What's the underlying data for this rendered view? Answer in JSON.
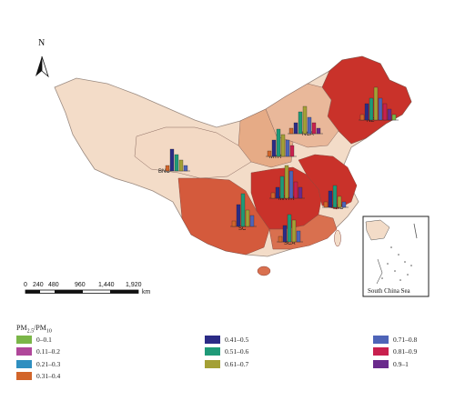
{
  "north_label": "N",
  "scale": {
    "ticks": [
      "0",
      "240",
      "480",
      "960",
      "1,440",
      "1,920"
    ],
    "unit": "km"
  },
  "inset_label": "South China Sea",
  "legend": {
    "title_main": "PM",
    "title_sub1": "2.5",
    "title_slash": "/PM",
    "title_sub2": "10",
    "items": [
      {
        "label": "0–0.1",
        "color": "#7ab648"
      },
      {
        "label": "0.11–0.2",
        "color": "#b0479a"
      },
      {
        "label": "0.21–0.3",
        "color": "#2f8fc0"
      },
      {
        "label": "0.31–0.4",
        "color": "#d2652a"
      },
      {
        "label": "0.41–0.5",
        "color": "#2b2b86"
      },
      {
        "label": "0.51–0.6",
        "color": "#1f9a78"
      },
      {
        "label": "0.61–0.7",
        "color": "#a4a035"
      },
      {
        "label": "0.71–0.8",
        "color": "#4e64b8"
      },
      {
        "label": "0.81–0.9",
        "color": "#c8204e"
      },
      {
        "label": "0.9–1",
        "color": "#6a2a8c"
      }
    ]
  },
  "regions": [
    {
      "label": "NE",
      "fill": "#c9322a",
      "bars": [
        1,
        3,
        4,
        6,
        4,
        3,
        2,
        1
      ]
    },
    {
      "label": "NCA",
      "fill": "#e9b89a",
      "bars": [
        1,
        2,
        4,
        5,
        3,
        2,
        1
      ]
    },
    {
      "label": "MYR",
      "fill": "#e6ab86",
      "bars": [
        1,
        3,
        5,
        4,
        3,
        2
      ]
    },
    {
      "label": "BNC",
      "fill": "#f3d9c4",
      "bars": [
        1,
        4,
        3,
        2,
        1
      ]
    },
    {
      "label": "MRYR",
      "fill": "#c9322a",
      "bars": [
        1,
        2,
        4,
        6,
        5,
        3,
        2
      ]
    },
    {
      "label": "SC",
      "fill": "#d45a3c",
      "bars": [
        1,
        4,
        6,
        3,
        2
      ]
    },
    {
      "label": "SCA",
      "fill": "#d9704f",
      "bars": [
        1,
        3,
        5,
        4,
        2
      ]
    },
    {
      "label": "YRD",
      "fill": "#c9322a",
      "bars": [
        1,
        3,
        4,
        2,
        1
      ]
    }
  ]
}
